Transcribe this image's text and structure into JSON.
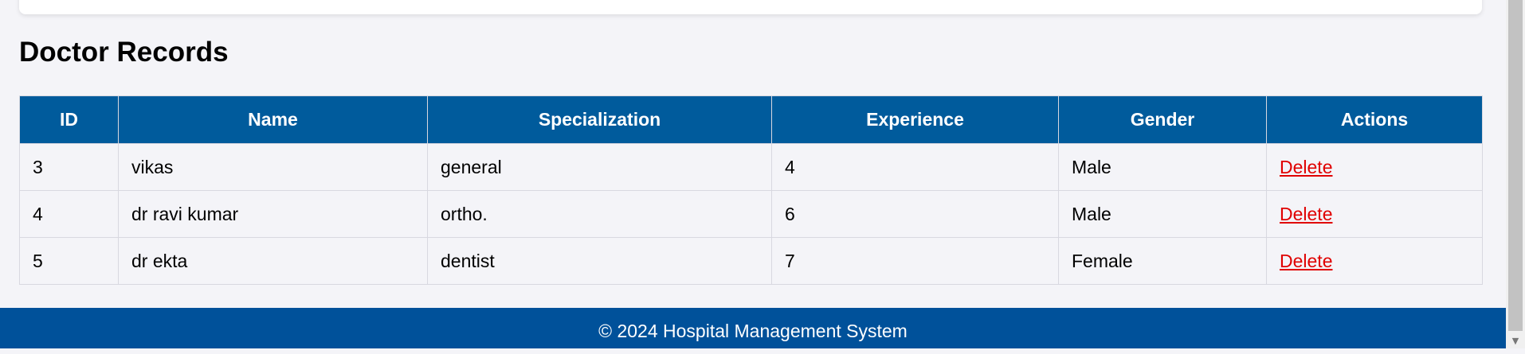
{
  "page_title": "Doctor Records",
  "table": {
    "headers": [
      "ID",
      "Name",
      "Specialization",
      "Experience",
      "Gender",
      "Actions"
    ],
    "rows": [
      {
        "id": "3",
        "name": "vikas",
        "specialization": "general",
        "experience": "4",
        "gender": "Male",
        "action": "Delete"
      },
      {
        "id": "4",
        "name": "dr ravi kumar",
        "specialization": "ortho.",
        "experience": "6",
        "gender": "Male",
        "action": "Delete"
      },
      {
        "id": "5",
        "name": "dr ekta",
        "specialization": "dentist",
        "experience": "7",
        "gender": "Female",
        "action": "Delete"
      }
    ]
  },
  "footer": {
    "text": "© 2024 Hospital Management System"
  },
  "scrollbar": {
    "arrow_icon": "chevron-down-icon"
  },
  "colors": {
    "header_bg": "#005b9c",
    "footer_bg": "#00519a",
    "delete_link": "#e00000",
    "page_bg": "#f4f4f8"
  }
}
